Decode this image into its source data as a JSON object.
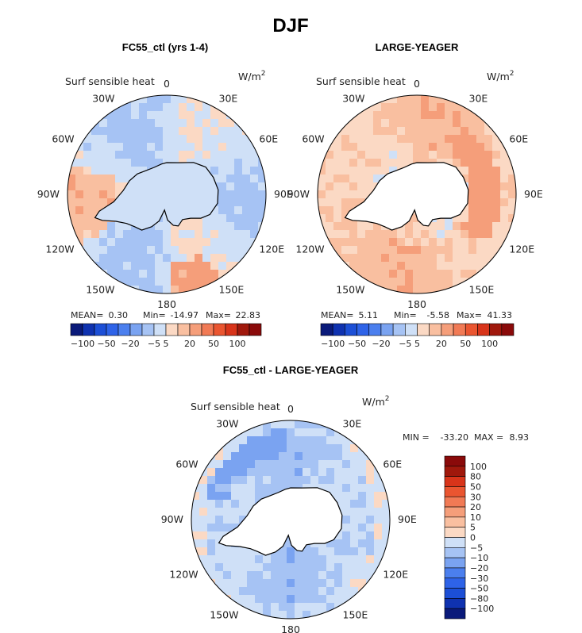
{
  "figure_title": "DJF",
  "palette": {
    "-100": "#0a1a7a",
    "-80": "#0f32b0",
    "-50": "#1c4fd6",
    "-30": "#2e63e8",
    "-20": "#4b7fee",
    "-10": "#7aa3f1",
    "-5": "#a6c3f4",
    "0": "#cfe0f7",
    "5": "#fbd9c4",
    "10": "#f9bfa0",
    "20": "#f59e7a",
    "30": "#f17a55",
    "50": "#ea5530",
    "80": "#d8341a",
    "100": "#a0180c",
    "max": "#8a0a0a",
    "land": "#ffffff",
    "coast": "#000000"
  },
  "chart_data": [
    {
      "type": "polar-map",
      "title": "FC55_ctl (yrs 1-4)",
      "variable_label": "Surf sensible heat",
      "units_label": "W/m",
      "units_exponent": "2",
      "lon_labels": [
        "0",
        "30E",
        "60E",
        "90E",
        "120E",
        "150E",
        "180",
        "150W",
        "120W",
        "90W",
        "60W",
        "30W"
      ],
      "stats": {
        "mean_label": "MEAN=",
        "mean": "0.30",
        "min_label": "Min=",
        "min": "-14.97",
        "max_label": "Max=",
        "max": "22.83"
      },
      "colorbar_ticks": [
        "-100",
        "-50",
        "-20",
        "-5",
        "5",
        "20",
        "50",
        "100"
      ],
      "colorbar_levels": [
        -100,
        -80,
        -50,
        -30,
        -20,
        -10,
        -5,
        0,
        5,
        10,
        20,
        30,
        50,
        80,
        100
      ],
      "field_mode": "mixed",
      "land_fill": true
    },
    {
      "type": "polar-map",
      "title": "LARGE-YEAGER",
      "variable_label": "Surf sensible heat",
      "units_label": "W/m",
      "units_exponent": "2",
      "lon_labels": [
        "0",
        "30E",
        "60E",
        "90E",
        "120E",
        "150E",
        "180",
        "150W",
        "120W",
        "90W",
        "60W",
        "30W"
      ],
      "stats": {
        "mean_label": "MEAN=",
        "mean": "5.11",
        "min_label": "Min=",
        "min": "-5.58",
        "max_label": "Max=",
        "max": "41.33"
      },
      "colorbar_ticks": [
        "-100",
        "-50",
        "-20",
        "-5",
        "5",
        "20",
        "50",
        "100"
      ],
      "colorbar_levels": [
        -100,
        -80,
        -50,
        -30,
        -20,
        -10,
        -5,
        0,
        5,
        10,
        20,
        30,
        50,
        80,
        100
      ],
      "field_mode": "warm",
      "land_fill": false
    },
    {
      "type": "polar-map",
      "title": "FC55_ctl - LARGE-YEAGER",
      "variable_label": "Surf sensible heat",
      "units_label": "W/m",
      "units_exponent": "2",
      "lon_labels": [
        "0",
        "30E",
        "60E",
        "90E",
        "120E",
        "150E",
        "180",
        "150W",
        "120W",
        "90W",
        "60W",
        "30W"
      ],
      "stats": {
        "min_label": "MIN =",
        "min": "-33.20",
        "max_label": "MAX =",
        "max": "8.93"
      },
      "colorbar_ticks": [
        "100",
        "80",
        "50",
        "30",
        "20",
        "10",
        "5",
        "0",
        "-5",
        "-10",
        "-20",
        "-30",
        "-50",
        "-80",
        "-100"
      ],
      "colorbar_levels": [
        -100,
        -80,
        -50,
        -30,
        -20,
        -10,
        -5,
        0,
        5,
        10,
        20,
        30,
        50,
        80,
        100
      ],
      "field_mode": "cool",
      "land_fill": false
    }
  ]
}
